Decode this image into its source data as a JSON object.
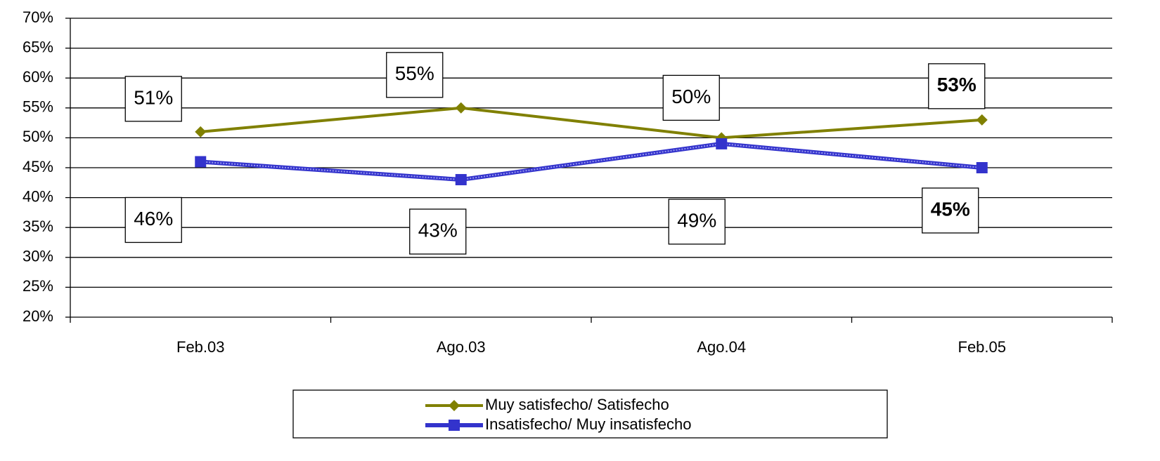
{
  "chart_data": {
    "type": "line",
    "categories": [
      "Feb.03",
      "Ago.03",
      "Ago.04",
      "Feb.05"
    ],
    "series": [
      {
        "name": "Muy satisfecho/ Satisfecho",
        "color": "#808000",
        "values": [
          51,
          55,
          50,
          53
        ],
        "value_labels": [
          "51%",
          "55%",
          "50%",
          "53%"
        ]
      },
      {
        "name": "Insatisfecho/ Muy insatisfecho",
        "color": "#3333cc",
        "values": [
          46,
          43,
          49,
          45
        ],
        "value_labels": [
          "46%",
          "43%",
          "49%",
          "45%"
        ]
      }
    ],
    "ylim": [
      20,
      70
    ],
    "yticks": [
      {
        "value": 20,
        "label": "20%"
      },
      {
        "value": 25,
        "label": "25%"
      },
      {
        "value": 30,
        "label": "30%"
      },
      {
        "value": 35,
        "label": "35%"
      },
      {
        "value": 40,
        "label": "40%"
      },
      {
        "value": 45,
        "label": "45%"
      },
      {
        "value": 50,
        "label": "50%"
      },
      {
        "value": 55,
        "label": "55%"
      },
      {
        "value": 60,
        "label": "60%"
      },
      {
        "value": 65,
        "label": "65%"
      },
      {
        "value": 70,
        "label": "70%"
      }
    ],
    "grid": true
  }
}
